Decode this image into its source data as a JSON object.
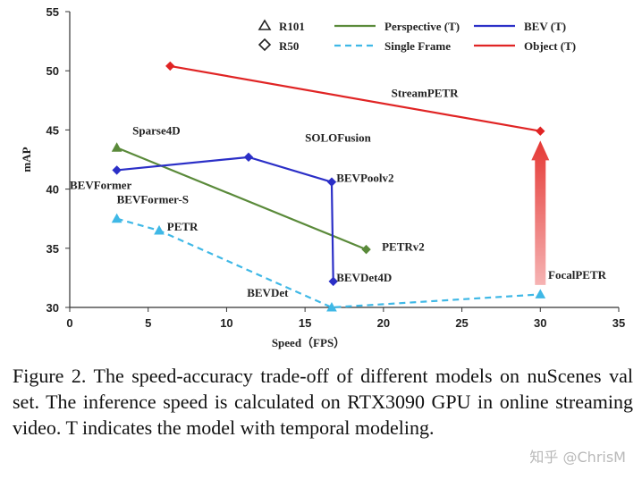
{
  "chart_data": {
    "type": "line",
    "title": "",
    "xlabel": "Speed（FPS）",
    "ylabel": "mAP",
    "xlim": [
      0,
      35
    ],
    "ylim": [
      30,
      55
    ],
    "xticks": [
      0,
      5,
      10,
      15,
      20,
      25,
      30,
      35
    ],
    "yticks": [
      30,
      35,
      40,
      45,
      50,
      55
    ],
    "grid": false,
    "legend": {
      "position": "top",
      "markers": [
        {
          "label": "R101",
          "symbol": "triangle"
        },
        {
          "label": "R50",
          "symbol": "diamond"
        }
      ],
      "lines": [
        {
          "label": "Perspective (T)",
          "color": "#5a8a3a",
          "style": "solid"
        },
        {
          "label": "Single Frame",
          "color": "#3fb8e6",
          "style": "dashed"
        },
        {
          "label": "BEV (T)",
          "color": "#2b2fc7",
          "style": "solid"
        },
        {
          "label": "Object (T)",
          "color": "#e02424",
          "style": "solid"
        }
      ]
    },
    "series": [
      {
        "name": "Perspective (T)",
        "color": "#5a8a3a",
        "dash": false,
        "points": [
          {
            "x": 3.0,
            "y": 43.5,
            "marker": "triangle",
            "label": "Sparse4D"
          },
          {
            "x": 18.9,
            "y": 34.9,
            "marker": "diamond",
            "label": "PETRv2"
          }
        ]
      },
      {
        "name": "Single Frame",
        "color": "#3fb8e6",
        "dash": true,
        "points": [
          {
            "x": 3.0,
            "y": 37.5,
            "marker": "triangle",
            "label": "BEVFormer-S"
          },
          {
            "x": 5.7,
            "y": 36.5,
            "marker": "triangle",
            "label": "PETR"
          },
          {
            "x": 16.7,
            "y": 30.0,
            "marker": "triangle",
            "label": "BEVDet"
          },
          {
            "x": 30.0,
            "y": 31.1,
            "marker": "triangle",
            "label": "FocalPETR"
          }
        ]
      },
      {
        "name": "BEV (T)",
        "color": "#2b2fc7",
        "dash": false,
        "points": [
          {
            "x": 3.0,
            "y": 41.6,
            "marker": "diamond",
            "label": "BEVFormer"
          },
          {
            "x": 11.4,
            "y": 42.7,
            "marker": "diamond",
            "label": "SOLOFusion"
          },
          {
            "x": 16.7,
            "y": 40.6,
            "marker": "diamond",
            "label": "BEVPoolv2"
          },
          {
            "x": 16.8,
            "y": 32.2,
            "marker": "diamond",
            "label": "BEVDet4D"
          }
        ]
      },
      {
        "name": "Object (T)",
        "color": "#e02424",
        "dash": false,
        "points": [
          {
            "x": 6.4,
            "y": 50.4,
            "marker": "diamond",
            "label": ""
          },
          {
            "x": 30.0,
            "y": 44.9,
            "marker": "diamond",
            "label": "StreamPETR"
          }
        ]
      }
    ],
    "annotations": [
      {
        "text": "StreamPETR",
        "x": 20.5,
        "y": 47.8
      },
      {
        "text": "Sparse4D",
        "x": 4.0,
        "y": 44.6
      },
      {
        "text": "SOLOFusion",
        "x": 15.0,
        "y": 44.0
      },
      {
        "text": "BEVFormer",
        "x": 0.0,
        "y": 40.0
      },
      {
        "text": "BEVPoolv2",
        "x": 17.0,
        "y": 40.6
      },
      {
        "text": "BEVFormer-S",
        "x": 3.0,
        "y": 38.8
      },
      {
        "text": "PETR",
        "x": 6.2,
        "y": 36.5
      },
      {
        "text": "PETRv2",
        "x": 19.9,
        "y": 34.8
      },
      {
        "text": "BEVDet4D",
        "x": 17.0,
        "y": 32.2
      },
      {
        "text": "BEVDet",
        "x": 11.3,
        "y": 30.9
      },
      {
        "text": "FocalPETR",
        "x": 30.5,
        "y": 32.4
      }
    ],
    "arrow": {
      "from": [
        30.0,
        31.9
      ],
      "to": [
        30.0,
        44.1
      ],
      "gradient": [
        "#f6b3b3",
        "#e53935"
      ]
    }
  },
  "caption": "Figure 2. The speed-accuracy trade-off of different models on nuScenes val set. The inference speed is calculated on RTX3090 GPU in online streaming video. T indicates the model with temporal modeling.",
  "watermark": "知乎 @ChrisM"
}
